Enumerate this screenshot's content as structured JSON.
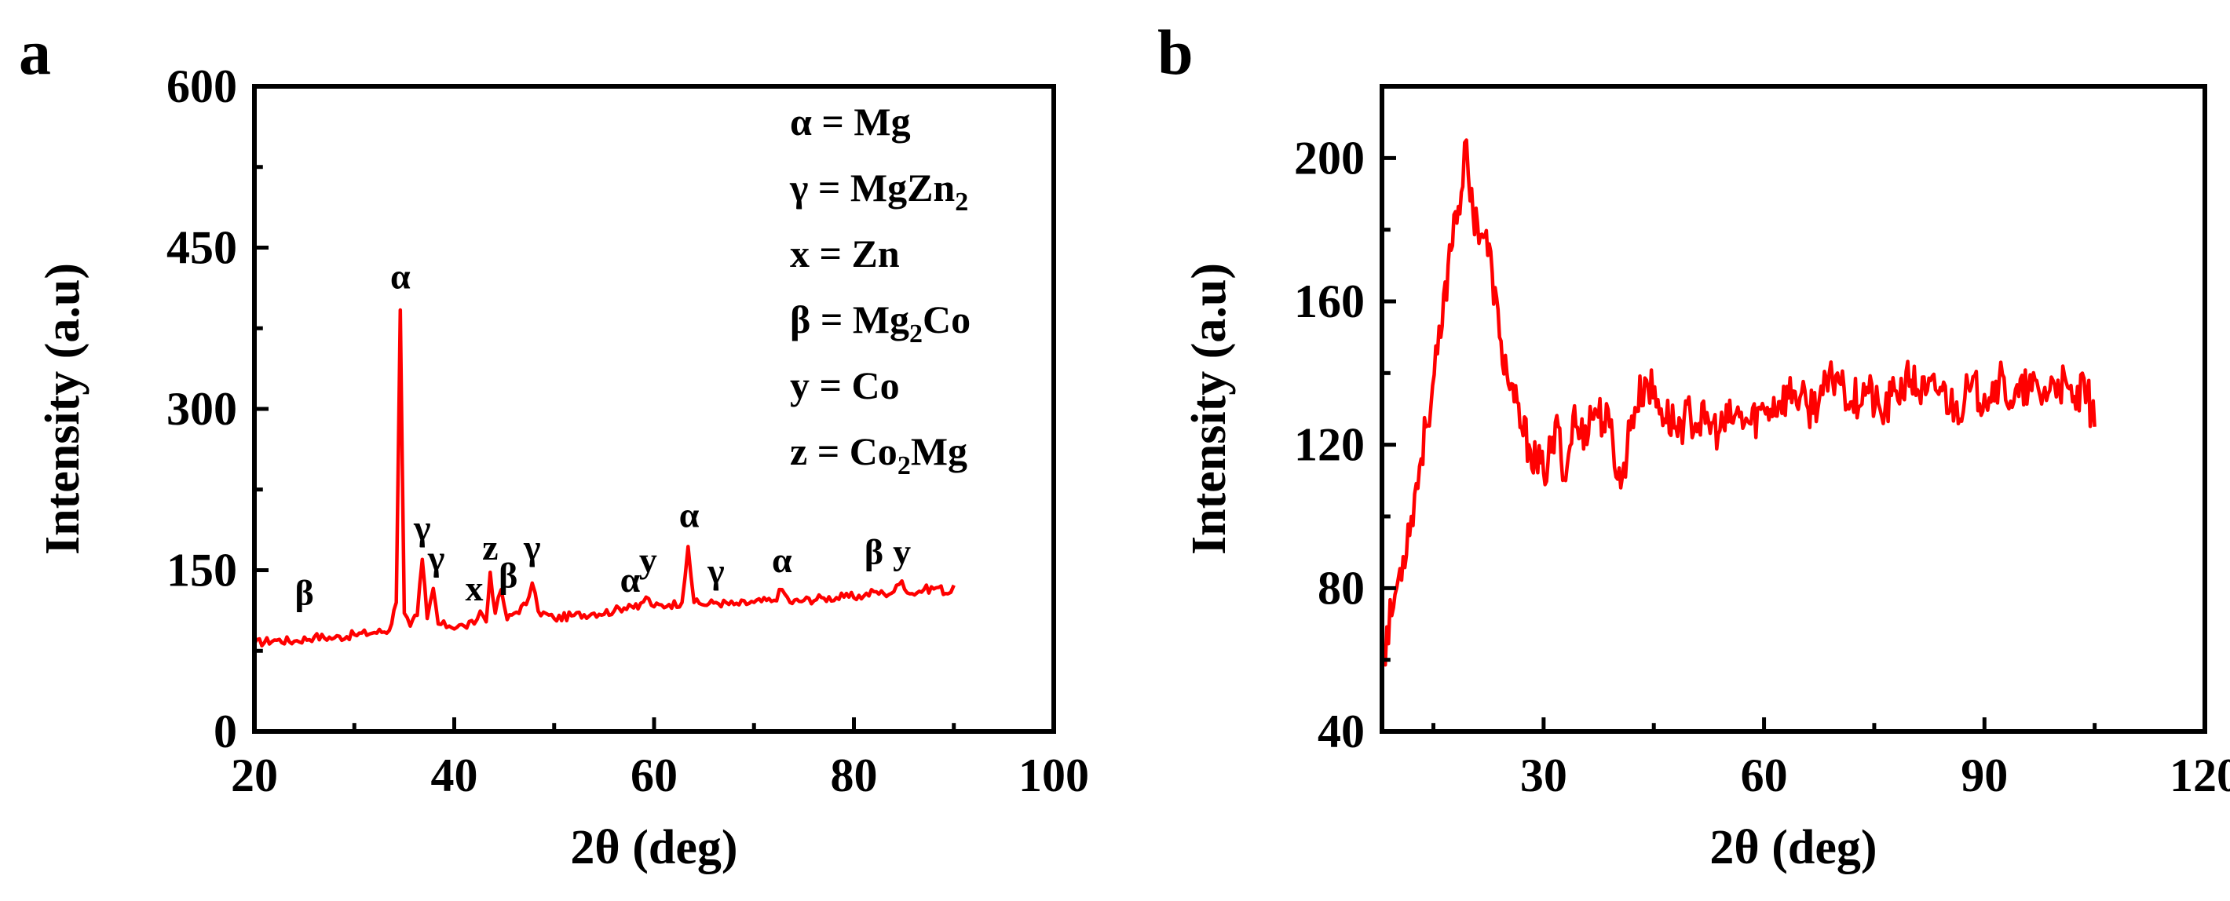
{
  "chart_data": [
    {
      "panel": "a",
      "type": "line",
      "xlabel": "2θ (deg)",
      "ylabel": "Intensity (a.u)",
      "xlim": [
        20,
        100
      ],
      "ylim": [
        0,
        600
      ],
      "xticks": [
        20,
        40,
        60,
        80,
        100
      ],
      "yticks": [
        0,
        150,
        300,
        450,
        600
      ],
      "color": "#ff0000",
      "series": [
        {
          "x": [
            20,
            22,
            24,
            26,
            28,
            30,
            32,
            33.5,
            34.2,
            34.6,
            35.0,
            35.6,
            36.3,
            36.8,
            37.3,
            37.9,
            38.4,
            39.5,
            41,
            42,
            42.6,
            43.2,
            43.6,
            44.1,
            44.7,
            45.3,
            46,
            47.2,
            47.8,
            48.4,
            50,
            52,
            54,
            56,
            57.5,
            58.4,
            59.2,
            60,
            61.5,
            62.8,
            63.4,
            64.0,
            64.8,
            66.2,
            68,
            70,
            72,
            72.8,
            73.6,
            75,
            77,
            79,
            81,
            82,
            83,
            84,
            84.8,
            85.6,
            87,
            88.5,
            89.4,
            90
          ],
          "y": [
            82,
            85,
            84,
            88,
            87,
            90,
            92,
            94,
            120,
            392,
            110,
            98,
            108,
            160,
            105,
            133,
            100,
            98,
            98,
            100,
            112,
            102,
            148,
            110,
            132,
            104,
            110,
            118,
            138,
            112,
            105,
            108,
            110,
            112,
            118,
            114,
            125,
            116,
            118,
            120,
            172,
            120,
            118,
            120,
            118,
            120,
            122,
            132,
            120,
            122,
            124,
            125,
            126,
            130,
            128,
            130,
            140,
            128,
            132,
            134,
            128,
            136
          ]
        }
      ],
      "legend": [
        {
          "sym": "α",
          "eq": " = ",
          "base": "Mg",
          "sub": "",
          "tail": ""
        },
        {
          "sym": "γ",
          "eq": " = ",
          "base": "MgZn",
          "sub": "2",
          "tail": ""
        },
        {
          "sym": "x",
          "eq": " = ",
          "base": "Zn",
          "sub": "",
          "tail": ""
        },
        {
          "sym": "β",
          "eq": " = ",
          "base": "Mg",
          "sub": "2",
          "tail": "Co"
        },
        {
          "sym": "y",
          "eq": " = ",
          "base": "Co",
          "sub": "",
          "tail": ""
        },
        {
          "sym": "z",
          "eq": " = ",
          "base": "Co",
          "sub": "2",
          "tail": "Mg"
        }
      ],
      "peak_labels": [
        {
          "text": "β",
          "x": 25,
          "y": 118
        },
        {
          "text": "α",
          "x": 34.6,
          "y": 412
        },
        {
          "text": "γ",
          "x": 36.8,
          "y": 178
        },
        {
          "text": "γ",
          "x": 38.2,
          "y": 150
        },
        {
          "text": "x",
          "x": 42.0,
          "y": 122
        },
        {
          "text": "z",
          "x": 43.6,
          "y": 160
        },
        {
          "text": "β",
          "x": 45.4,
          "y": 134
        },
        {
          "text": "γ",
          "x": 47.8,
          "y": 160
        },
        {
          "text": "α",
          "x": 57.6,
          "y": 130
        },
        {
          "text": "y",
          "x": 59.4,
          "y": 148
        },
        {
          "text": "α",
          "x": 63.5,
          "y": 190
        },
        {
          "text": "γ",
          "x": 66.2,
          "y": 138
        },
        {
          "text": "α",
          "x": 72.8,
          "y": 148
        },
        {
          "text": "β",
          "x": 82.0,
          "y": 156
        },
        {
          "text": "y",
          "x": 84.8,
          "y": 156
        }
      ]
    },
    {
      "panel": "b",
      "type": "line",
      "xlabel": "2θ (deg)",
      "ylabel": "Intensity (a.u)",
      "xlim": [
        8,
        120
      ],
      "ylim": [
        40,
        220
      ],
      "xticks": [
        30,
        60,
        90,
        120
      ],
      "yticks": [
        40,
        80,
        120,
        160,
        200
      ],
      "color": "#ff0000",
      "series": [
        {
          "x": [
            8,
            10,
            12,
            14,
            16,
            17,
            18,
            19,
            19.5,
            20,
            21,
            22,
            23,
            24,
            25,
            26,
            27,
            28,
            29,
            30,
            31,
            32,
            33,
            34,
            35,
            37,
            39,
            40.5,
            42,
            44,
            46,
            48,
            50,
            52,
            54,
            56,
            58,
            60,
            62,
            64,
            66,
            68,
            70,
            72,
            74,
            76,
            78,
            80,
            82,
            84,
            86,
            88,
            90,
            92,
            94,
            96,
            98,
            100,
            102,
            104,
            105
          ],
          "y": [
            60,
            80,
            100,
            125,
            150,
            170,
            185,
            192,
            205,
            188,
            182,
            178,
            168,
            150,
            140,
            132,
            125,
            120,
            115,
            112,
            118,
            125,
            110,
            128,
            122,
            130,
            125,
            108,
            128,
            138,
            130,
            125,
            128,
            126,
            124,
            128,
            126,
            130,
            132,
            135,
            130,
            134,
            140,
            132,
            136,
            128,
            135,
            138,
            134,
            136,
            130,
            135,
            134,
            138,
            132,
            136,
            134,
            138,
            132,
            135,
            125
          ]
        }
      ]
    }
  ]
}
